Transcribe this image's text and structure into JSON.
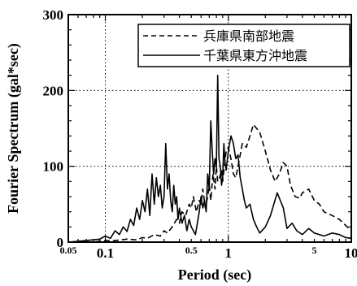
{
  "chart_data": {
    "type": "line",
    "title": "",
    "xlabel": "Period (sec)",
    "ylabel": "Fourier Spectrum (gal*sec)",
    "xscale": "log",
    "xlim": [
      0.05,
      10
    ],
    "ylim": [
      0,
      300
    ],
    "x_ticks": [
      {
        "value": 0.05,
        "label": "0.05",
        "size": "small"
      },
      {
        "value": 0.1,
        "label": "0.1",
        "size": "large"
      },
      {
        "value": 0.5,
        "label": "0.5",
        "size": "small"
      },
      {
        "value": 1,
        "label": "1",
        "size": "large"
      },
      {
        "value": 5,
        "label": "5",
        "size": "small"
      },
      {
        "value": 10,
        "label": "10",
        "size": "large"
      }
    ],
    "y_ticks": [
      0,
      100,
      200,
      300
    ],
    "grid": "dotted at x=0.1,1 and y=100,200",
    "legend_position": "top-right",
    "series": [
      {
        "name": "兵庫県南部地震",
        "style": "dashed",
        "color": "#000000",
        "x": [
          0.05,
          0.08,
          0.1,
          0.12,
          0.15,
          0.18,
          0.2,
          0.22,
          0.25,
          0.28,
          0.3,
          0.32,
          0.35,
          0.38,
          0.4,
          0.42,
          0.45,
          0.48,
          0.5,
          0.52,
          0.55,
          0.58,
          0.6,
          0.62,
          0.65,
          0.68,
          0.7,
          0.72,
          0.75,
          0.78,
          0.8,
          0.82,
          0.85,
          0.88,
          0.9,
          0.93,
          0.96,
          1.0,
          1.05,
          1.1,
          1.15,
          1.2,
          1.3,
          1.4,
          1.5,
          1.6,
          1.8,
          2.0,
          2.2,
          2.4,
          2.6,
          2.8,
          3.0,
          3.2,
          3.5,
          3.8,
          4.0,
          4.5,
          5.0,
          5.5,
          6.0,
          7.0,
          8.0,
          9.0,
          10.0
        ],
        "y": [
          0,
          0,
          2,
          2,
          4,
          3,
          6,
          5,
          10,
          8,
          15,
          12,
          20,
          30,
          25,
          40,
          35,
          50,
          45,
          60,
          40,
          55,
          50,
          70,
          45,
          60,
          75,
          55,
          90,
          70,
          100,
          80,
          85,
          95,
          80,
          100,
          120,
          125,
          110,
          90,
          85,
          100,
          130,
          125,
          140,
          155,
          145,
          120,
          95,
          80,
          90,
          105,
          100,
          75,
          60,
          58,
          65,
          70,
          55,
          50,
          40,
          35,
          30,
          22,
          15
        ]
      },
      {
        "name": "千葉県東方沖地震",
        "style": "solid",
        "color": "#000000",
        "x": [
          0.05,
          0.07,
          0.09,
          0.1,
          0.11,
          0.12,
          0.13,
          0.14,
          0.15,
          0.16,
          0.17,
          0.18,
          0.19,
          0.2,
          0.21,
          0.22,
          0.23,
          0.24,
          0.25,
          0.26,
          0.27,
          0.28,
          0.29,
          0.3,
          0.31,
          0.32,
          0.33,
          0.34,
          0.35,
          0.36,
          0.37,
          0.38,
          0.39,
          0.4,
          0.42,
          0.44,
          0.46,
          0.48,
          0.5,
          0.52,
          0.54,
          0.56,
          0.58,
          0.6,
          0.62,
          0.64,
          0.66,
          0.68,
          0.7,
          0.72,
          0.74,
          0.76,
          0.78,
          0.8,
          0.82,
          0.84,
          0.86,
          0.88,
          0.9,
          0.92,
          0.94,
          0.96,
          1.0,
          1.05,
          1.1,
          1.15,
          1.2,
          1.25,
          1.3,
          1.35,
          1.4,
          1.5,
          1.6,
          1.7,
          1.8,
          2.0,
          2.2,
          2.5,
          2.8,
          3.0,
          3.3,
          3.6,
          4.0,
          4.5,
          5.0,
          6.0,
          7.0,
          8.0,
          9.0,
          10.0
        ],
        "y": [
          0,
          2,
          4,
          8,
          5,
          15,
          10,
          20,
          14,
          30,
          22,
          45,
          30,
          55,
          40,
          70,
          35,
          90,
          50,
          85,
          60,
          75,
          45,
          60,
          130,
          70,
          90,
          55,
          40,
          75,
          50,
          60,
          30,
          45,
          25,
          35,
          15,
          30,
          20,
          15,
          10,
          25,
          40,
          60,
          45,
          55,
          40,
          90,
          70,
          160,
          120,
          90,
          110,
          100,
          220,
          110,
          100,
          75,
          85,
          130,
          105,
          95,
          120,
          140,
          130,
          110,
          115,
          85,
          70,
          55,
          45,
          50,
          30,
          20,
          12,
          20,
          35,
          65,
          45,
          18,
          25,
          15,
          10,
          18,
          12,
          8,
          12,
          10,
          6,
          5
        ]
      }
    ]
  }
}
